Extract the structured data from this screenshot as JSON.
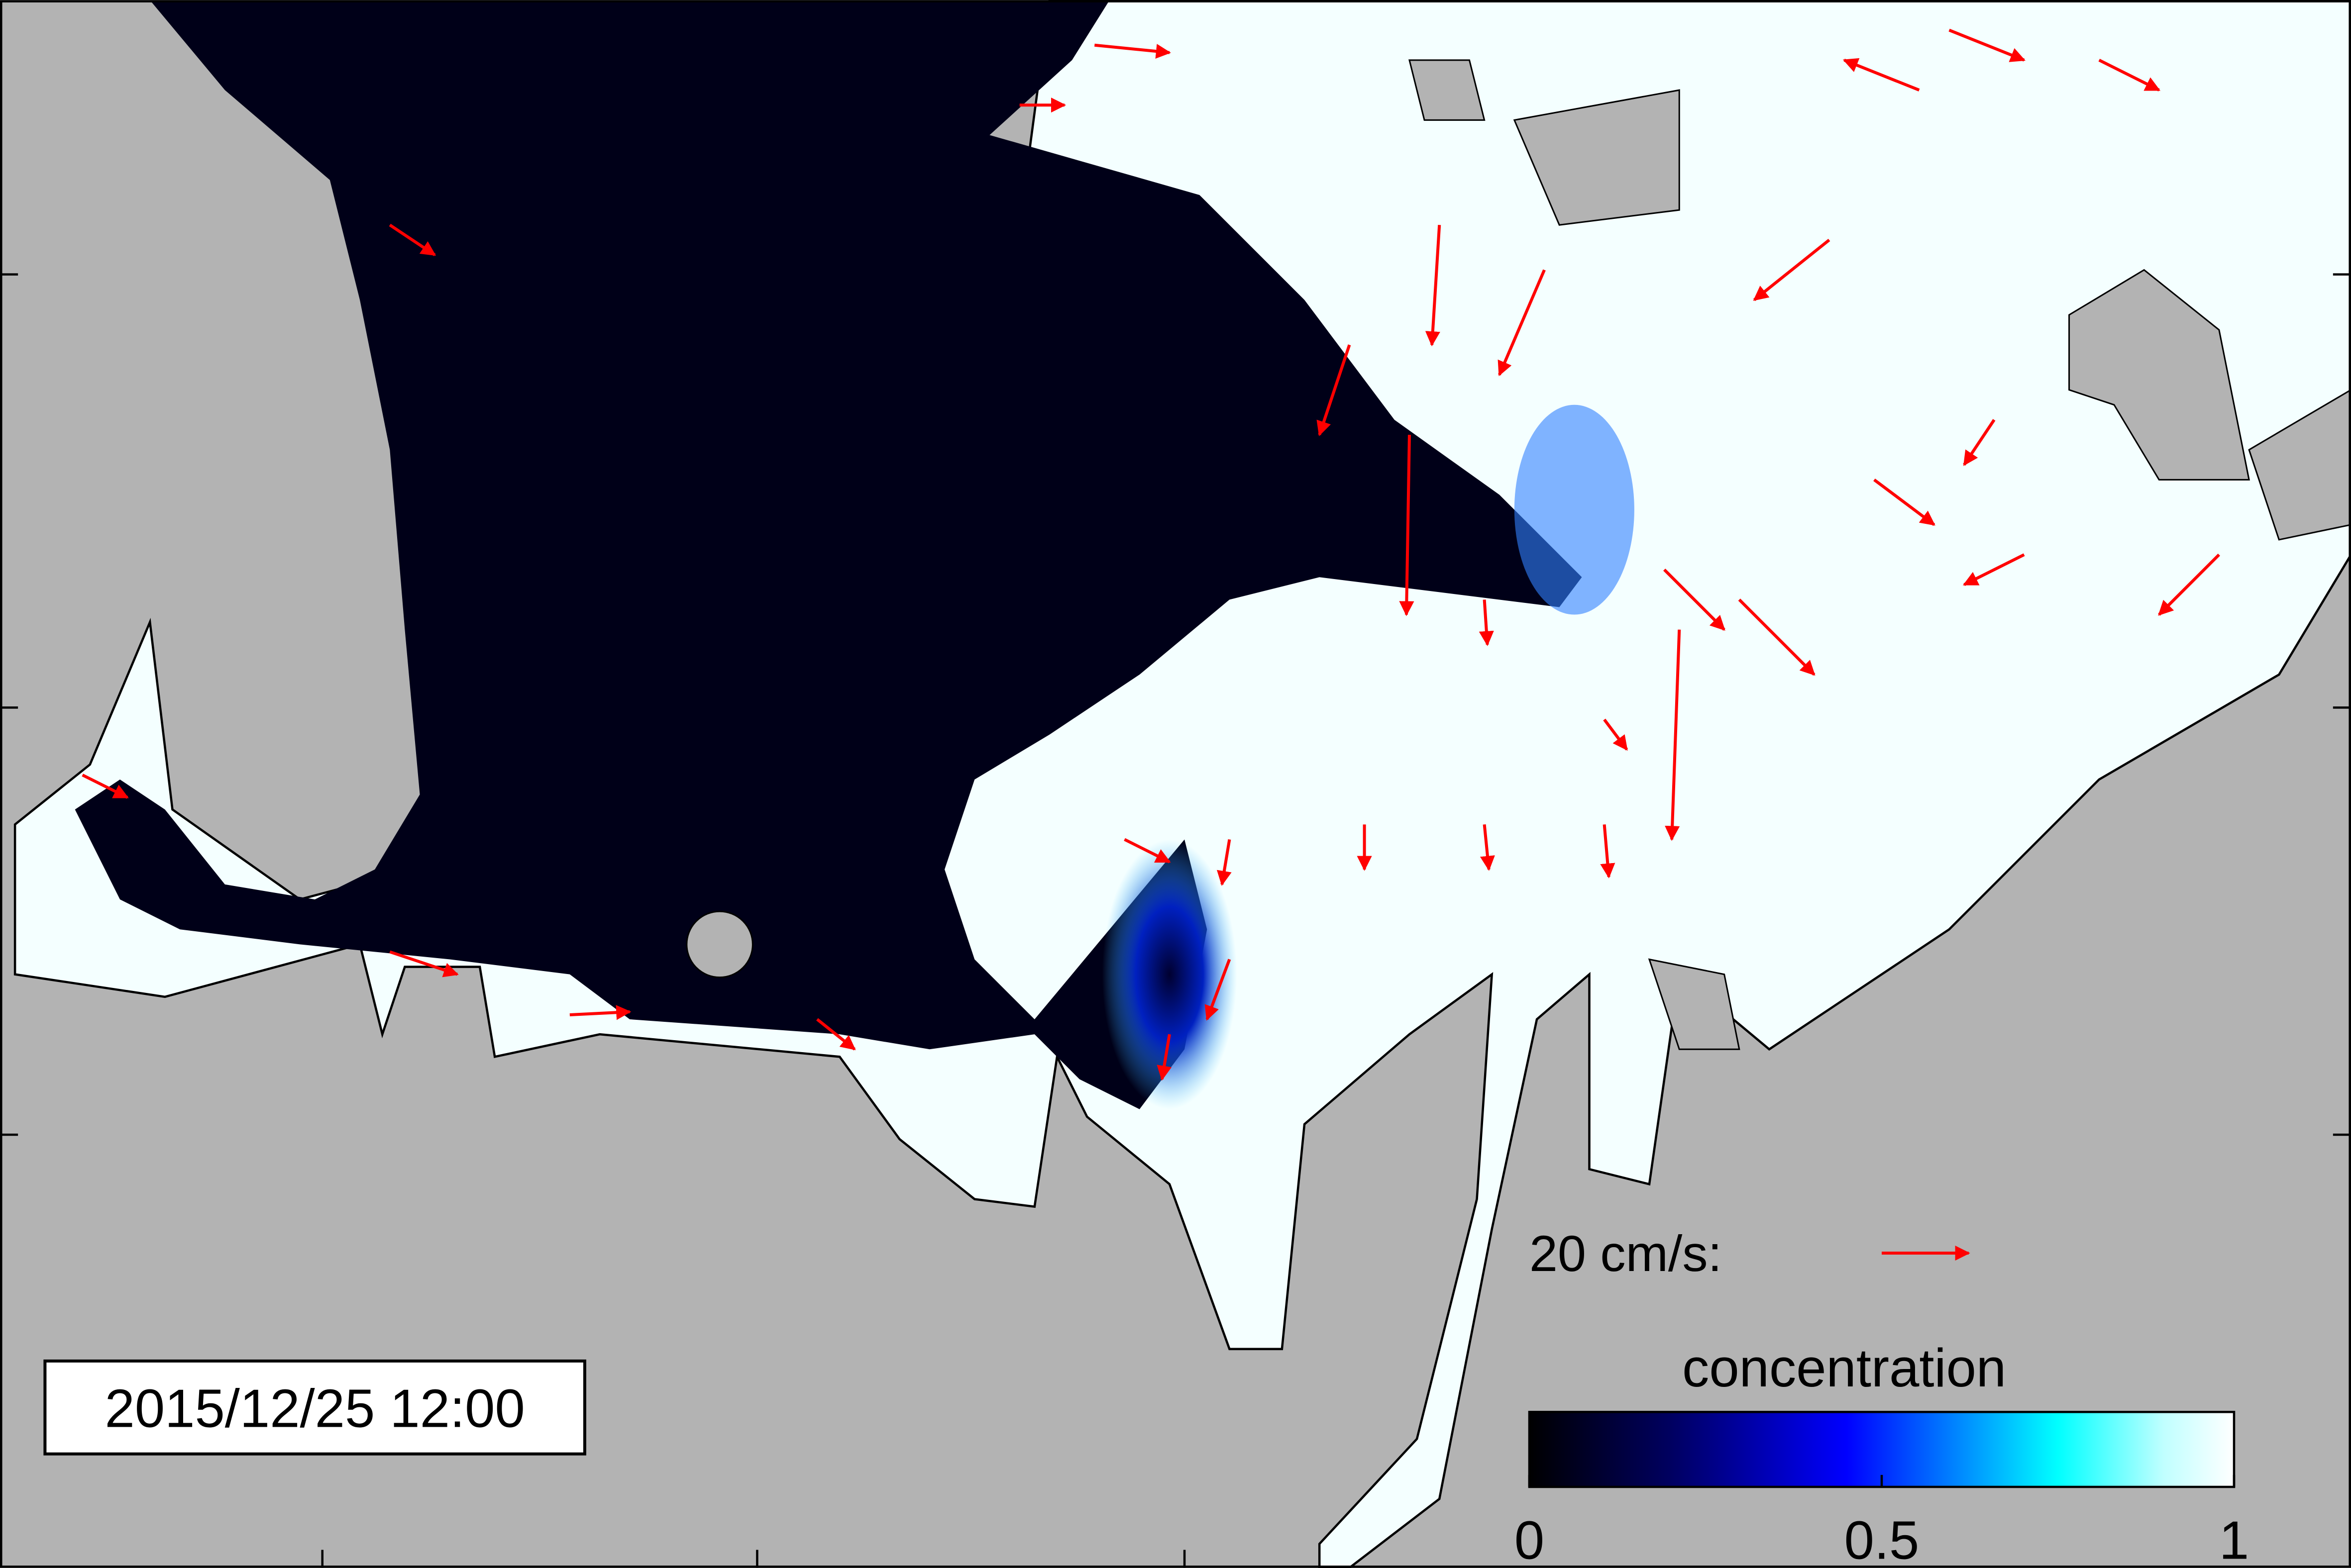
{
  "timestamp": "2015/12/25 12:00",
  "velocity_legend": {
    "label": "20 cm/s:"
  },
  "colorbar": {
    "title": "concentration",
    "ticks": [
      0,
      0.5,
      1
    ]
  }
}
